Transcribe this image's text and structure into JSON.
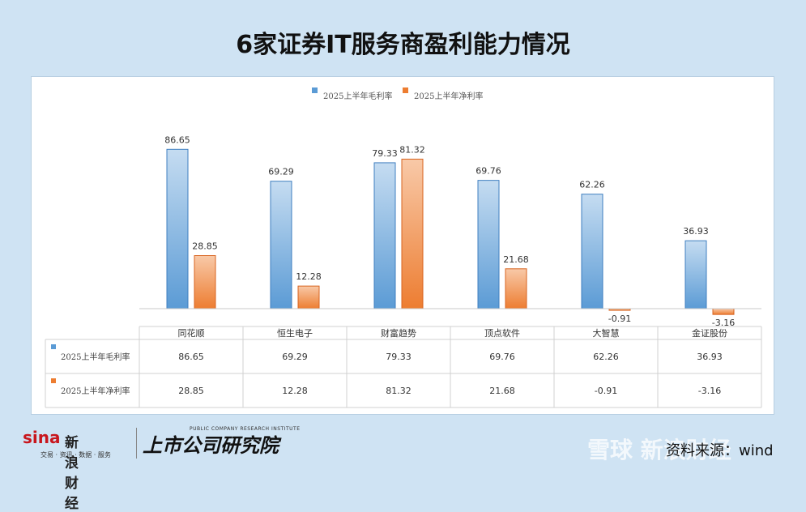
{
  "title": "6家证券IT服务商盈利能力情况",
  "chart_data": {
    "type": "bar",
    "categories": [
      "同花顺",
      "恒生电子",
      "财富趋势",
      "顶点软件",
      "大智慧",
      "金证股份"
    ],
    "series": [
      {
        "name": "2025上半年毛利率",
        "values": [
          86.65,
          69.29,
          79.33,
          69.76,
          62.26,
          36.93
        ],
        "color": "#5b9bd5"
      },
      {
        "name": "2025上半年净利率",
        "values": [
          28.85,
          12.28,
          81.32,
          21.68,
          -0.91,
          -3.16
        ],
        "color": "#ed7d31"
      }
    ],
    "legend": "top",
    "grid": false,
    "data_table": true
  },
  "footer": {
    "sina_logo": "sina",
    "sina_name": "新浪财经",
    "sina_tagline": "交易 · 资讯 · 数据 · 服务",
    "institute_name": "上市公司研究院",
    "institute_en": "PUBLIC COMPANY RESEARCH INSTITUTE",
    "watermark": "雪球 新浪财经",
    "source": "资料来源：wind"
  }
}
